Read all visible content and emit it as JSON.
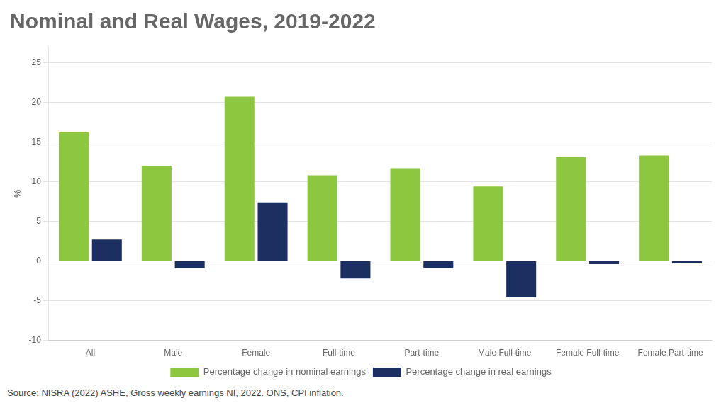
{
  "chart_data": {
    "type": "bar",
    "title": "Nominal and Real Wages, 2019-2022",
    "categories": [
      "All",
      "Male",
      "Female",
      "Full-time",
      "Part-time",
      "Male Full-time",
      "Female Full-time",
      "Female Part-time"
    ],
    "series": [
      {
        "name": "Percentage change in nominal earnings",
        "color": "#8DC63F",
        "values": [
          16.2,
          12.0,
          20.7,
          10.8,
          11.7,
          9.4,
          13.1,
          13.3
        ]
      },
      {
        "name": "Percentage change in real earnings",
        "color": "#1B3060",
        "values": [
          2.7,
          -0.9,
          7.4,
          -2.2,
          -0.9,
          -4.6,
          -0.4,
          -0.3
        ]
      }
    ],
    "ylabel": "%",
    "ylim": [
      -10,
      27
    ],
    "yticks": [
      -10,
      -5,
      0,
      5,
      10,
      15,
      20,
      25
    ],
    "grid": true,
    "legend": "bottom",
    "annotations": [
      "Source: NISRA (2022) ASHE, Gross weekly earnings NI, 2022. ONS, CPI inflation."
    ]
  }
}
